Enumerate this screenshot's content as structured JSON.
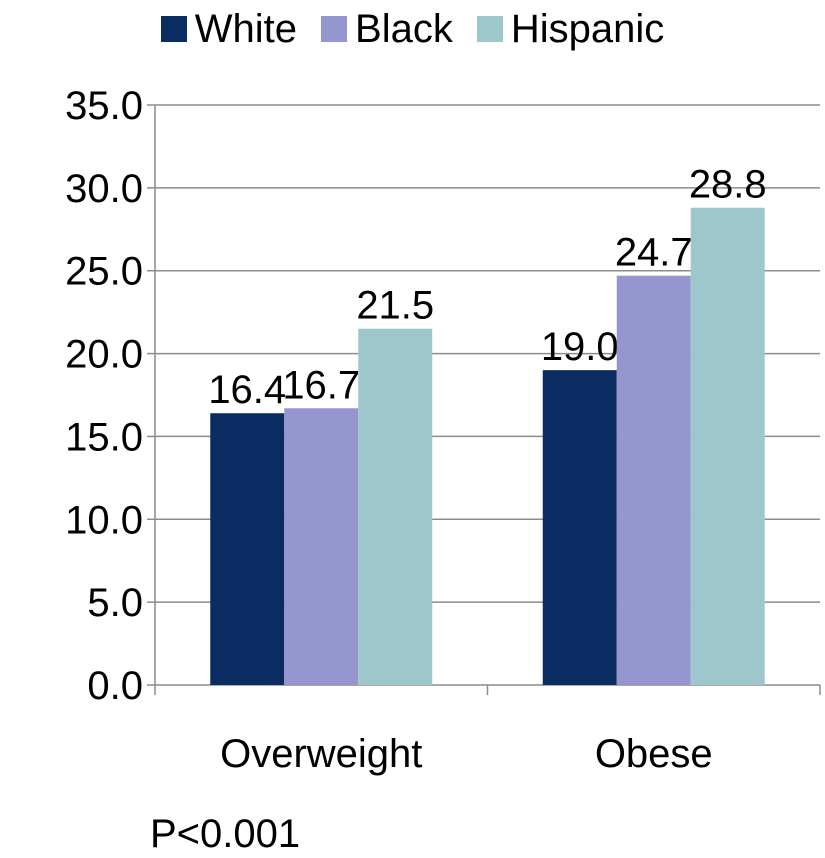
{
  "chart_data": {
    "type": "bar",
    "categories": [
      "Overweight",
      "Obese"
    ],
    "series": [
      {
        "name": "White",
        "color": "#0b2b63",
        "values": [
          16.4,
          19.0
        ]
      },
      {
        "name": "Black",
        "color": "#9595cf",
        "values": [
          16.7,
          24.7
        ]
      },
      {
        "name": "Hispanic",
        "color": "#9ec7cd",
        "values": [
          21.5,
          28.8
        ]
      }
    ],
    "ylim": [
      0,
      35
    ],
    "yticks": [
      "0.0",
      "5.0",
      "10.0",
      "15.0",
      "20.0",
      "25.0",
      "30.0",
      "35.0"
    ],
    "grid": true,
    "legend_position": "top",
    "title": "",
    "xlabel": "",
    "ylabel": ""
  },
  "note": "P<0.001"
}
